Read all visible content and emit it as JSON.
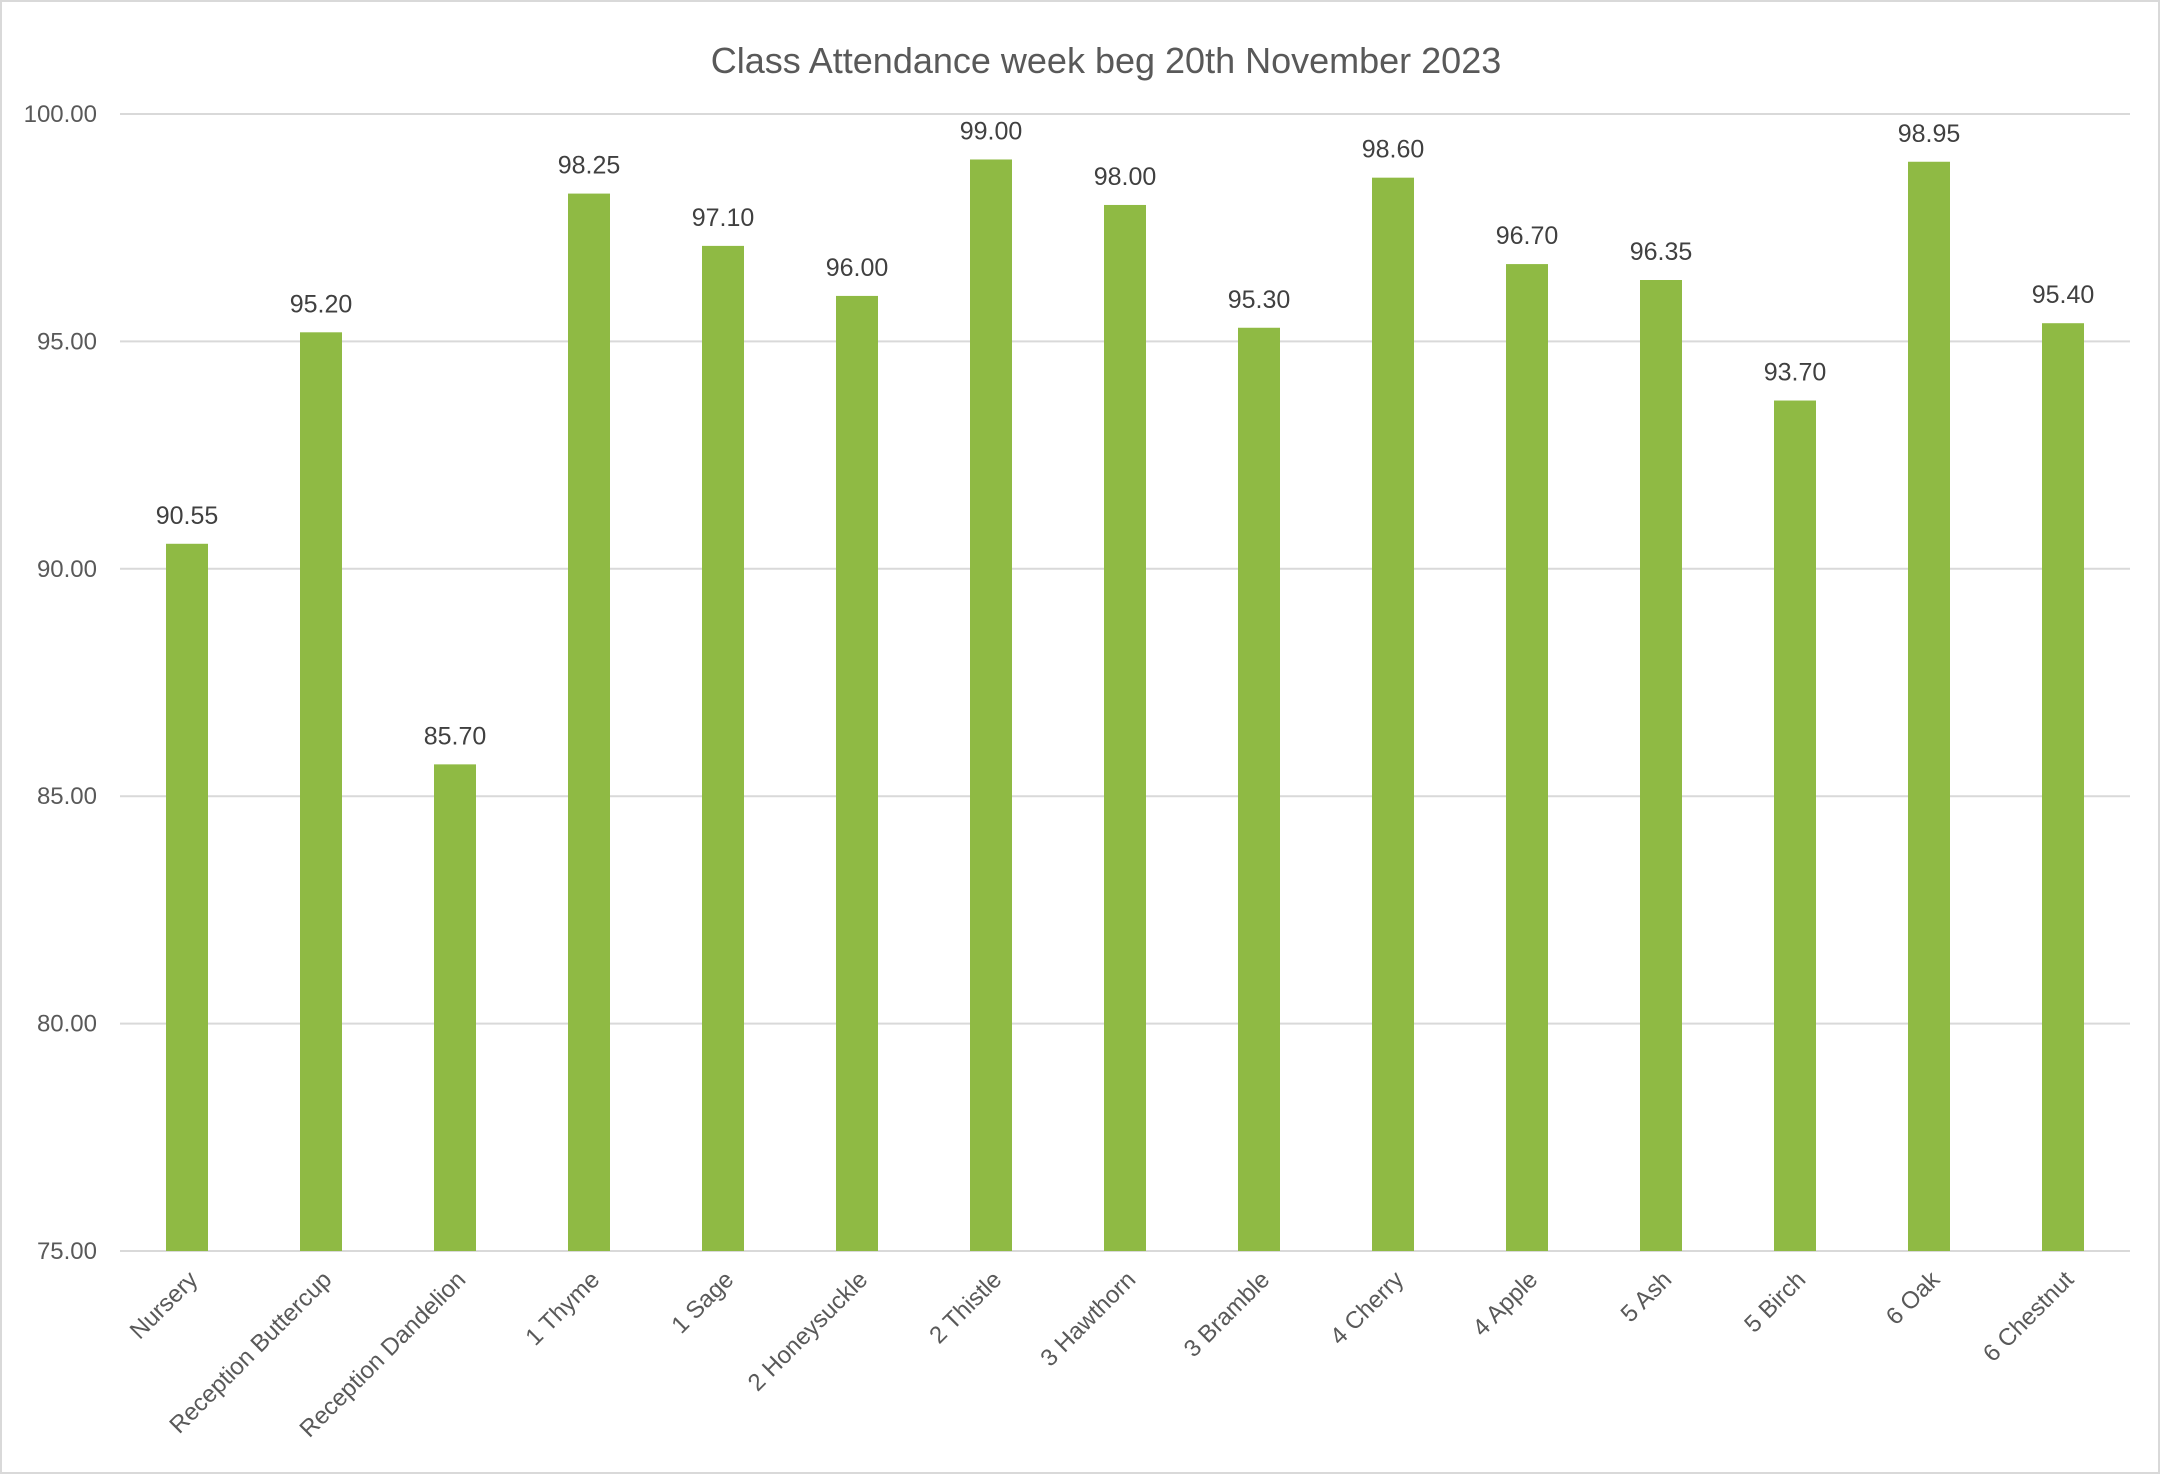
{
  "chart_data": {
    "type": "bar",
    "title": "Class Attendance week beg 20th November 2023",
    "xlabel": "",
    "ylabel": "",
    "ylim": [
      75,
      100
    ],
    "yticks": [
      "75.00",
      "80.00",
      "85.00",
      "90.00",
      "95.00",
      "100.00"
    ],
    "categories": [
      "Nursery",
      "Reception Buttercup",
      "Reception Dandelion",
      "1 Thyme",
      "1 Sage",
      "2 Honeysuckle",
      "2 Thistle",
      "3 Hawthorn",
      "3 Bramble",
      "4 Cherry",
      "4 Apple",
      "5 Ash",
      "5 Birch",
      "6 Oak",
      "6 Chestnut"
    ],
    "values": [
      90.55,
      95.2,
      85.7,
      98.25,
      97.1,
      96.0,
      99.0,
      98.0,
      95.3,
      98.6,
      96.7,
      96.35,
      93.7,
      98.95,
      95.4
    ],
    "data_labels": [
      "90.55",
      "95.20",
      "85.70",
      "98.25",
      "97.10",
      "96.00",
      "99.00",
      "98.00",
      "95.30",
      "98.60",
      "96.70",
      "96.35",
      "93.70",
      "98.95",
      "95.40"
    ],
    "grid": true,
    "legend": "none",
    "bar_color": "#8fba44"
  }
}
